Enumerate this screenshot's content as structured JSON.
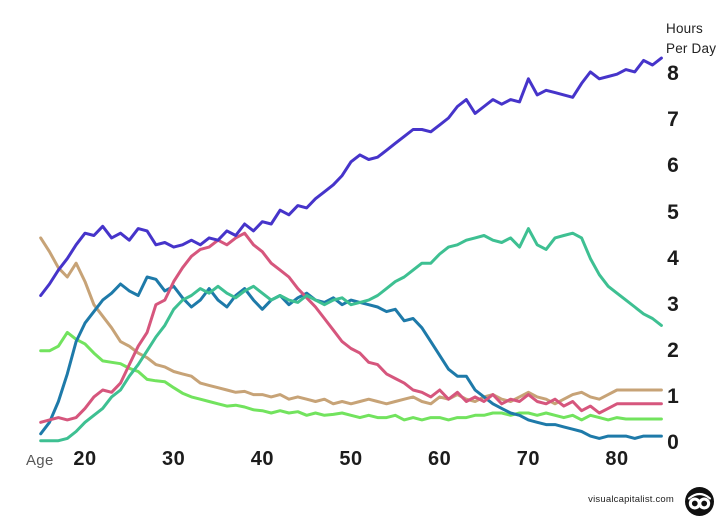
{
  "axes": {
    "x": {
      "label": "Age"
    },
    "y": {
      "label_line1": "Hours",
      "label_line2": "Per Day"
    }
  },
  "footer": {
    "site": "visualcapitalist.com"
  },
  "colors": {
    "indigo": "#4634ca",
    "teal": "#3ec092",
    "blue": "#1e7aa9",
    "pink": "#d6567d",
    "tan": "#c7a377",
    "green": "#72e35e",
    "tick_text": "#1c1c1c",
    "background": "#ffffff"
  },
  "chart_data": {
    "type": "line",
    "title": "",
    "xlabel": "Age",
    "ylabel": "Hours Per Day",
    "xlim": [
      15,
      85
    ],
    "ylim": [
      0,
      8.6
    ],
    "grid": false,
    "legend": "none",
    "x_ticks": [
      20,
      30,
      40,
      50,
      60,
      70,
      80
    ],
    "y_ticks": [
      0,
      1,
      2,
      3,
      4,
      5,
      6,
      7,
      8
    ],
    "x": [
      15,
      16,
      17,
      18,
      19,
      20,
      21,
      22,
      23,
      24,
      25,
      26,
      27,
      28,
      29,
      30,
      31,
      32,
      33,
      34,
      35,
      36,
      37,
      38,
      39,
      40,
      41,
      42,
      43,
      44,
      45,
      46,
      47,
      48,
      49,
      50,
      51,
      52,
      53,
      54,
      55,
      56,
      57,
      58,
      59,
      60,
      61,
      62,
      63,
      64,
      65,
      66,
      67,
      68,
      69,
      70,
      71,
      72,
      73,
      74,
      75,
      76,
      77,
      78,
      79,
      80,
      81,
      82,
      83,
      84,
      85
    ],
    "series": [
      {
        "name": "tan-line",
        "color": "#c7a377",
        "values": [
          4.45,
          4.15,
          3.8,
          3.6,
          3.9,
          3.5,
          3.0,
          2.75,
          2.5,
          2.2,
          2.1,
          1.95,
          1.85,
          1.7,
          1.65,
          1.55,
          1.5,
          1.45,
          1.3,
          1.25,
          1.2,
          1.15,
          1.1,
          1.12,
          1.05,
          1.05,
          1.0,
          1.05,
          0.95,
          1.0,
          0.95,
          0.9,
          0.95,
          0.85,
          0.9,
          0.85,
          0.9,
          0.95,
          0.9,
          0.85,
          0.9,
          0.95,
          1.0,
          0.9,
          0.85,
          1.0,
          0.95,
          1.05,
          0.95,
          0.9,
          1.0,
          1.05,
          0.95,
          0.9,
          1.0,
          1.1,
          1.0,
          0.95,
          0.85,
          0.95,
          1.05,
          1.1,
          1.0,
          0.95,
          1.05,
          1.15,
          1.15,
          1.15,
          1.15,
          1.15,
          1.15
        ]
      },
      {
        "name": "green-line",
        "color": "#72e35e",
        "values": [
          2.0,
          2.0,
          2.1,
          2.4,
          2.25,
          2.15,
          1.95,
          1.78,
          1.75,
          1.72,
          1.62,
          1.55,
          1.38,
          1.35,
          1.33,
          1.2,
          1.08,
          1.0,
          0.95,
          0.9,
          0.85,
          0.8,
          0.82,
          0.78,
          0.72,
          0.7,
          0.65,
          0.7,
          0.65,
          0.68,
          0.6,
          0.65,
          0.6,
          0.62,
          0.65,
          0.6,
          0.55,
          0.6,
          0.55,
          0.55,
          0.6,
          0.5,
          0.55,
          0.5,
          0.55,
          0.55,
          0.5,
          0.55,
          0.55,
          0.6,
          0.6,
          0.65,
          0.65,
          0.6,
          0.65,
          0.65,
          0.6,
          0.65,
          0.6,
          0.55,
          0.6,
          0.5,
          0.6,
          0.55,
          0.5,
          0.55,
          0.52,
          0.52,
          0.52,
          0.52,
          0.52
        ]
      },
      {
        "name": "blue-line",
        "color": "#1e7aa9",
        "values": [
          0.2,
          0.45,
          0.9,
          1.5,
          2.2,
          2.6,
          2.85,
          3.1,
          3.25,
          3.45,
          3.3,
          3.2,
          3.6,
          3.55,
          3.3,
          3.4,
          3.15,
          2.95,
          3.1,
          3.35,
          3.1,
          2.95,
          3.2,
          3.35,
          3.1,
          2.9,
          3.1,
          3.2,
          3.0,
          3.15,
          3.25,
          3.1,
          3.05,
          3.15,
          3.0,
          3.1,
          3.05,
          3.0,
          2.95,
          2.85,
          2.9,
          2.65,
          2.7,
          2.5,
          2.2,
          1.9,
          1.6,
          1.45,
          1.45,
          1.15,
          1.0,
          0.85,
          0.75,
          0.65,
          0.6,
          0.5,
          0.45,
          0.4,
          0.4,
          0.35,
          0.3,
          0.25,
          0.15,
          0.1,
          0.15,
          0.15,
          0.15,
          0.1,
          0.15,
          0.15,
          0.15
        ]
      },
      {
        "name": "pink-line",
        "color": "#d6567d",
        "values": [
          0.45,
          0.5,
          0.55,
          0.5,
          0.55,
          0.75,
          1.0,
          1.15,
          1.1,
          1.3,
          1.7,
          2.1,
          2.4,
          3.0,
          3.1,
          3.5,
          3.8,
          4.05,
          4.2,
          4.25,
          4.4,
          4.3,
          4.45,
          4.55,
          4.3,
          4.15,
          3.9,
          3.75,
          3.6,
          3.35,
          3.15,
          2.95,
          2.7,
          2.45,
          2.2,
          2.05,
          1.95,
          1.75,
          1.7,
          1.5,
          1.4,
          1.3,
          1.15,
          1.1,
          1.0,
          1.15,
          0.95,
          1.1,
          0.9,
          1.0,
          0.9,
          1.05,
          0.85,
          0.95,
          0.9,
          1.05,
          0.9,
          0.85,
          0.95,
          0.8,
          0.9,
          0.7,
          0.8,
          0.65,
          0.75,
          0.85,
          0.85,
          0.85,
          0.85,
          0.85,
          0.85
        ]
      },
      {
        "name": "teal-line",
        "color": "#3ec092",
        "values": [
          0.05,
          0.05,
          0.05,
          0.1,
          0.25,
          0.45,
          0.6,
          0.75,
          1.0,
          1.15,
          1.45,
          1.7,
          2.0,
          2.3,
          2.55,
          2.9,
          3.1,
          3.2,
          3.35,
          3.25,
          3.4,
          3.25,
          3.15,
          3.3,
          3.4,
          3.25,
          3.1,
          3.2,
          3.1,
          3.05,
          3.2,
          3.1,
          3.0,
          3.1,
          3.15,
          3.0,
          3.05,
          3.1,
          3.2,
          3.35,
          3.5,
          3.6,
          3.75,
          3.9,
          3.9,
          4.1,
          4.25,
          4.3,
          4.4,
          4.45,
          4.5,
          4.4,
          4.35,
          4.45,
          4.25,
          4.65,
          4.3,
          4.2,
          4.45,
          4.5,
          4.55,
          4.45,
          4.0,
          3.65,
          3.4,
          3.25,
          3.1,
          2.95,
          2.8,
          2.7,
          2.55
        ]
      },
      {
        "name": "indigo-line",
        "color": "#4634ca",
        "values": [
          3.2,
          3.45,
          3.75,
          4.0,
          4.3,
          4.55,
          4.5,
          4.7,
          4.45,
          4.55,
          4.4,
          4.65,
          4.6,
          4.3,
          4.35,
          4.25,
          4.3,
          4.4,
          4.3,
          4.45,
          4.4,
          4.6,
          4.5,
          4.75,
          4.6,
          4.8,
          4.75,
          5.05,
          4.95,
          5.15,
          5.1,
          5.3,
          5.45,
          5.6,
          5.8,
          6.1,
          6.25,
          6.15,
          6.2,
          6.35,
          6.5,
          6.65,
          6.8,
          6.8,
          6.75,
          6.9,
          7.05,
          7.3,
          7.45,
          7.15,
          7.3,
          7.45,
          7.35,
          7.45,
          7.4,
          7.9,
          7.55,
          7.65,
          7.6,
          7.55,
          7.5,
          7.8,
          8.05,
          7.9,
          7.95,
          8.0,
          8.1,
          8.05,
          8.3,
          8.2,
          8.35
        ]
      }
    ]
  }
}
